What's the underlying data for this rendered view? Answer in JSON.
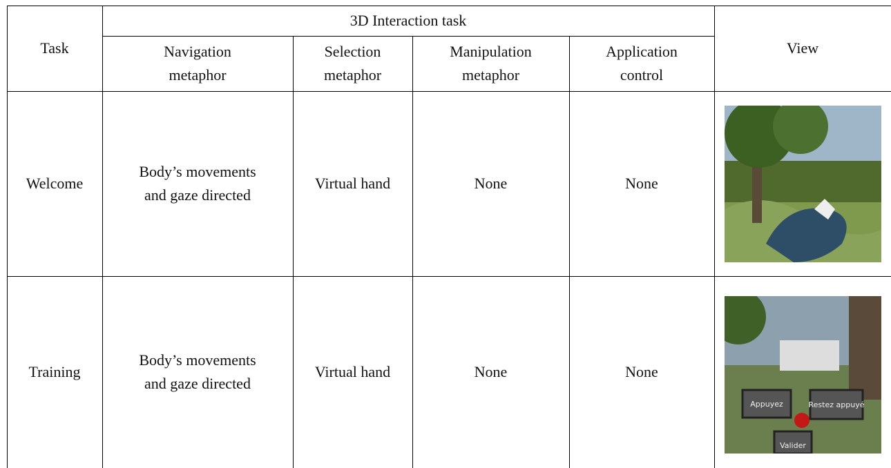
{
  "table": {
    "header": {
      "task": "Task",
      "group": "3D Interaction task",
      "columns": [
        [
          "Navigation",
          "metaphor"
        ],
        [
          "Selection",
          "metaphor"
        ],
        [
          "Manipulation",
          "metaphor"
        ],
        [
          "Application",
          "control"
        ]
      ],
      "view": "View"
    },
    "rows": [
      {
        "task": "Welcome",
        "navigation": [
          "Body’s movements",
          "and gaze directed"
        ],
        "selection": "Virtual hand",
        "manipulation": "None",
        "application": "None"
      },
      {
        "task": "Training",
        "navigation": [
          "Body’s movements",
          "and gaze directed"
        ],
        "selection": "Virtual hand",
        "manipulation": "None",
        "application": "None"
      }
    ]
  },
  "views": {
    "training_labels": [
      "Appuyez",
      "Restez appuyé",
      "Valider"
    ]
  }
}
